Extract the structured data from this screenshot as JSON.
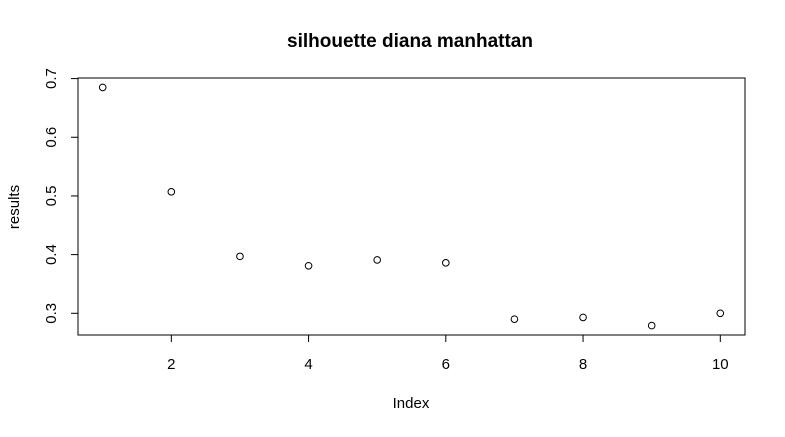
{
  "chart_data": {
    "type": "scatter",
    "title": "silhouette diana manhattan",
    "xlabel": "Index",
    "ylabel": "results",
    "x": [
      1,
      2,
      3,
      4,
      5,
      6,
      7,
      8,
      9,
      10
    ],
    "y": [
      0.685,
      0.507,
      0.397,
      0.381,
      0.391,
      0.386,
      0.29,
      0.293,
      0.279,
      0.3
    ],
    "xlim": [
      0.64,
      10.36
    ],
    "ylim": [
      0.263,
      0.701
    ],
    "xticks": [
      2,
      4,
      6,
      8,
      10
    ],
    "yticks": [
      0.3,
      0.4,
      0.5,
      0.6,
      0.7
    ],
    "xtick_labels": [
      "2",
      "4",
      "6",
      "8",
      "10"
    ],
    "ytick_labels": [
      "0.3",
      "0.4",
      "0.5",
      "0.6",
      "0.7"
    ],
    "grid": false,
    "legend": "none",
    "marker": "open-circle",
    "color": "#000000"
  }
}
